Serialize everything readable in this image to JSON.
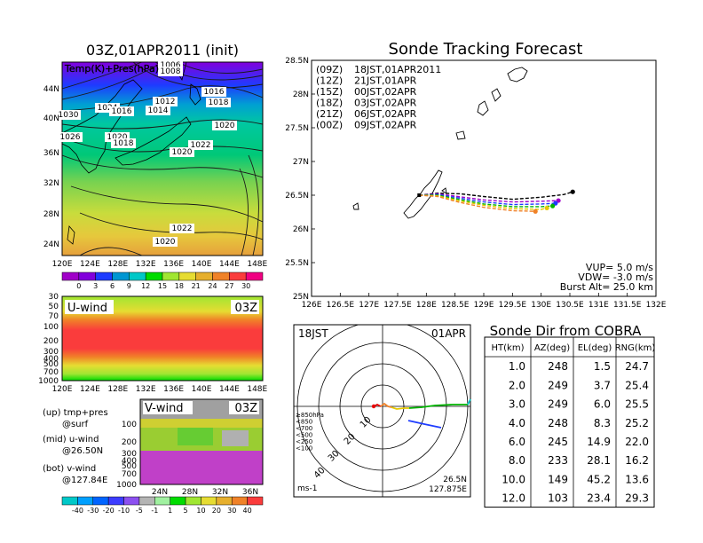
{
  "left": {
    "title": "03Z,01APR2011 (init)",
    "map_label": "Temp(K)+Pres(hPa)",
    "lat_labels": [
      "44N",
      "40N",
      "36N",
      "32N",
      "28N",
      "24N"
    ],
    "lon_labels": [
      "120E",
      "124E",
      "128E",
      "132E",
      "136E",
      "140E",
      "144E",
      "148E"
    ],
    "isobar_labels": [
      "1006",
      "1008",
      "1024",
      "1016",
      "1012",
      "1014",
      "1016",
      "1018",
      "1030",
      "1026",
      "1020",
      "1018",
      "1022",
      "1020",
      "1020",
      "1022",
      "1020"
    ],
    "temp_colorbar": {
      "ticks": [
        "0",
        "3",
        "6",
        "9",
        "12",
        "15",
        "18",
        "21",
        "24",
        "27",
        "30"
      ],
      "colors": [
        "#a000c8",
        "#8200dc",
        "#1e3cff",
        "#0096d2",
        "#00c8c8",
        "#00dc00",
        "#a0e632",
        "#e6dc32",
        "#e6af2d",
        "#f08228",
        "#fa3c3c",
        "#f00082"
      ]
    },
    "uwind": {
      "label": "U-wind",
      "time": "03Z",
      "y_ticks": [
        "30",
        "50",
        "70",
        "100",
        "200",
        "300",
        "400",
        "500",
        "700",
        "1000"
      ]
    },
    "vwind": {
      "label": "V-wind",
      "time": "03Z",
      "y_ticks": [
        "100",
        "200",
        "300",
        "400",
        "500",
        "700",
        "1000"
      ],
      "x_ticks": [
        "24N",
        "28N",
        "32N",
        "36N"
      ]
    },
    "legend_notes": [
      "(up) tmp+pres",
      "@surf",
      "(mid) u-wind",
      "@26.50N",
      "(bot) v-wind",
      "@127.84E"
    ],
    "wind_colorbar": {
      "ticks": [
        "-40",
        "-30",
        "-20",
        "-10",
        "-5",
        "-1",
        "1",
        "5",
        "10",
        "20",
        "30",
        "40"
      ],
      "colors": [
        "#00c8c8",
        "#00a0ff",
        "#0064ff",
        "#3c3cff",
        "#8c50f0",
        "#b4b4b4",
        "#a0f0a0",
        "#00dc00",
        "#a0e632",
        "#e6dc32",
        "#e6af2d",
        "#f08228",
        "#fa3c3c"
      ]
    }
  },
  "forecast": {
    "title": "Sonde Tracking Forecast",
    "lat_labels": [
      "28.5N",
      "28N",
      "27.5N",
      "27N",
      "26.5N",
      "26N",
      "25.5N",
      "25N"
    ],
    "lon_labels": [
      "126E",
      "126.5E",
      "127E",
      "127.5E",
      "128E",
      "128.5E",
      "129E",
      "129.5E",
      "130E",
      "130.5E",
      "131E",
      "131.5E",
      "132E"
    ],
    "series": [
      {
        "tag": "(09Z)",
        "label": "18JST,01APR2011",
        "color": "#000000"
      },
      {
        "tag": "(12Z)",
        "label": "21JST,01APR",
        "color": "#a000c8"
      },
      {
        "tag": "(15Z)",
        "label": "00JST,02APR",
        "color": "#1e3cff"
      },
      {
        "tag": "(18Z)",
        "label": "03JST,02APR",
        "color": "#00b400"
      },
      {
        "tag": "(21Z)",
        "label": "06JST,02APR",
        "color": "#e6c800"
      },
      {
        "tag": "(00Z)",
        "label": "09JST,02APR",
        "color": "#f08228"
      }
    ],
    "params": [
      "VUP=  5.0  m/s",
      "VDW= -3.0  m/s",
      "Burst Alt=  25.0  km"
    ]
  },
  "chart_data": {
    "type": "line",
    "title": "Sonde Tracking Forecast",
    "xlim": [
      126,
      132
    ],
    "ylim": [
      25,
      28.5
    ],
    "launch_point": {
      "lon": 127.875,
      "lat": 26.5
    },
    "series": [
      {
        "name": "(09Z) 18JST,01APR2011",
        "lon": [
          127.875,
          128.2,
          128.6,
          129.0,
          129.5,
          130.0,
          130.4,
          130.55
        ],
        "lat": [
          26.5,
          26.53,
          26.52,
          26.48,
          26.44,
          26.47,
          26.51,
          26.55
        ]
      },
      {
        "name": "(12Z) 21JST,01APR",
        "lon": [
          127.875,
          128.2,
          128.55,
          129.0,
          129.5,
          130.0,
          130.3
        ],
        "lat": [
          26.5,
          26.52,
          26.48,
          26.43,
          26.4,
          26.41,
          26.42
        ]
      },
      {
        "name": "(15Z) 00JST,02APR",
        "lon": [
          127.875,
          128.2,
          128.55,
          129.0,
          129.5,
          130.0,
          130.25
        ],
        "lat": [
          26.5,
          26.51,
          26.46,
          26.4,
          26.36,
          26.37,
          26.38
        ]
      },
      {
        "name": "(18Z) 03JST,02APR",
        "lon": [
          127.875,
          128.2,
          128.55,
          129.0,
          129.5,
          130.0,
          130.2
        ],
        "lat": [
          26.5,
          26.5,
          26.44,
          26.37,
          26.33,
          26.33,
          26.34
        ]
      },
      {
        "name": "(21Z) 06JST,02APR",
        "lon": [
          127.875,
          128.2,
          128.55,
          129.0,
          129.5,
          130.0,
          130.1
        ],
        "lat": [
          26.5,
          26.49,
          26.42,
          26.35,
          26.3,
          26.29,
          26.31
        ]
      },
      {
        "name": "(00Z) 09JST,02APR",
        "lon": [
          127.875,
          128.2,
          128.55,
          129.0,
          129.5,
          129.9
        ],
        "lat": [
          26.5,
          26.48,
          26.4,
          26.32,
          26.27,
          26.26
        ]
      }
    ]
  },
  "radar": {
    "time": "18JST",
    "date": "01APR",
    "ring_labels": [
      "10",
      "20",
      "30",
      "40"
    ],
    "alt_legend": [
      {
        "label": "≥850hPa",
        "color": "#e60000"
      },
      {
        "label": "<850",
        "color": "#f08228"
      },
      {
        "label": "<700",
        "color": "#e6c800"
      },
      {
        "label": "<500",
        "color": "#00b400"
      },
      {
        "label": "<250",
        "color": "#00c8c8"
      },
      {
        "label": "<100",
        "color": "#1e3cff"
      }
    ],
    "unit": "ms-1",
    "pos_lat": "26.5N",
    "pos_lon": "127.875E"
  },
  "table": {
    "title": "Sonde Dir from COBRA",
    "headers": [
      "HT(km)",
      "AZ(deg)",
      "EL(deg)",
      "RNG(km)"
    ],
    "rows": [
      [
        "1.0",
        "248",
        "1.5",
        "24.7"
      ],
      [
        "2.0",
        "249",
        "3.7",
        "25.4"
      ],
      [
        "3.0",
        "249",
        "6.0",
        "25.5"
      ],
      [
        "4.0",
        "248",
        "8.3",
        "25.2"
      ],
      [
        "6.0",
        "245",
        "14.9",
        "22.0"
      ],
      [
        "8.0",
        "233",
        "28.1",
        "16.2"
      ],
      [
        "10.0",
        "149",
        "45.2",
        "13.6"
      ],
      [
        "12.0",
        "103",
        "23.4",
        "29.3"
      ]
    ]
  }
}
